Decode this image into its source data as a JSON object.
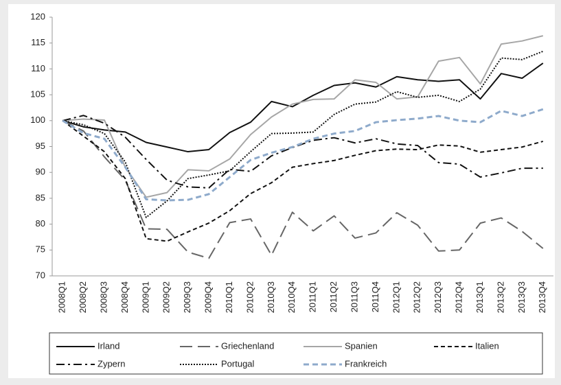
{
  "chart_data": {
    "type": "line",
    "categories": [
      "2008Q1",
      "2008Q2",
      "2008Q3",
      "2008Q4",
      "2009Q1",
      "2009Q2",
      "2009Q3",
      "2009Q4",
      "2010Q1",
      "2010Q2",
      "2010Q3",
      "2010Q4",
      "2011Q1",
      "2011Q2",
      "2011Q3",
      "2011Q4",
      "2012Q1",
      "2012Q2",
      "2012Q3",
      "2012Q4",
      "2013Q1",
      "2013Q2",
      "2013Q3",
      "2013Q4"
    ],
    "ylim": [
      70,
      120
    ],
    "yticks": [
      70,
      75,
      80,
      85,
      90,
      95,
      100,
      105,
      110,
      115,
      120
    ],
    "grid": false,
    "legend": "bottom",
    "series": [
      {
        "name": "Irland",
        "color": "#111111",
        "dash": "solid",
        "values": [
          100,
          98.8,
          98.2,
          97.8,
          95.8,
          94.9,
          94,
          94.4,
          97.7,
          99.7,
          103.7,
          102.7,
          104.9,
          106.8,
          107.3,
          106.5,
          108.5,
          107.9,
          107.6,
          107.9,
          104.2,
          109.1,
          108.2,
          111.1
        ]
      },
      {
        "name": "Griechenland",
        "color": "#666666",
        "dash": "longdash",
        "values": [
          100,
          98,
          93,
          88.5,
          79.1,
          79,
          74.6,
          73.4,
          80.3,
          81,
          74,
          82.3,
          78.7,
          81.6,
          77.3,
          78.3,
          82.2,
          79.8,
          74.8,
          75,
          80.2,
          81.2,
          78.6,
          75.3
        ]
      },
      {
        "name": "Spanien",
        "color": "#a6a6a6",
        "dash": "solid",
        "values": [
          100,
          100.3,
          100.1,
          91,
          85.2,
          86.1,
          90.5,
          90.3,
          92.6,
          97.3,
          100.7,
          103.2,
          104.1,
          104.2,
          107.9,
          107.4,
          104.2,
          104.6,
          111.5,
          112.2,
          107.1,
          114.8,
          115.4,
          116.4
        ]
      },
      {
        "name": "Italien",
        "color": "#111111",
        "dash": "shortdash",
        "values": [
          100,
          97,
          94,
          88.8,
          77.2,
          76.7,
          78.5,
          80.2,
          82.6,
          85.9,
          88,
          91,
          91.7,
          92.3,
          93.3,
          94.2,
          94.5,
          94.4,
          95.3,
          95.1,
          93.9,
          94.4,
          94.9,
          96
        ]
      },
      {
        "name": "Zypern",
        "color": "#111111",
        "dash": "dashdot",
        "values": [
          100,
          101,
          99.5,
          96.8,
          92.5,
          88.5,
          87.2,
          87,
          90.6,
          90.2,
          93.2,
          94.8,
          96.2,
          96.7,
          95.7,
          96.5,
          95.5,
          95.2,
          91.9,
          91.6,
          89.1,
          89.9,
          90.8,
          90.8
        ]
      },
      {
        "name": "Portugal",
        "color": "#111111",
        "dash": "dot",
        "values": [
          100,
          99.2,
          97.5,
          92,
          81.3,
          84.5,
          88.8,
          89.5,
          90.3,
          94,
          97.5,
          97.6,
          97.8,
          101.2,
          103.2,
          103.6,
          105.6,
          104.5,
          104.9,
          103.7,
          106.1,
          112.1,
          111.8,
          113.4
        ]
      },
      {
        "name": "Frankreich",
        "color": "#8eaacb",
        "dash": "dash",
        "values": [
          100,
          97.6,
          96.5,
          91,
          84.8,
          84.6,
          84.7,
          85.8,
          89.1,
          92.4,
          93.8,
          94.9,
          96.5,
          97.5,
          98,
          99.7,
          100.1,
          100.4,
          100.9,
          100,
          99.7,
          101.9,
          100.9,
          102.2
        ]
      }
    ]
  }
}
